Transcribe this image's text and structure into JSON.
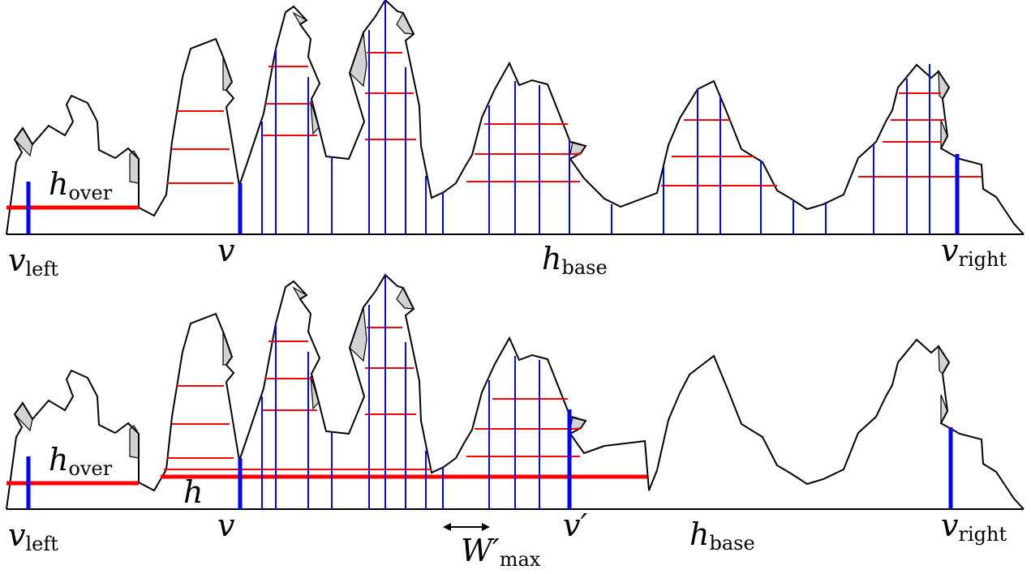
{
  "colors": {
    "water_level": "#ff0000",
    "vertical_segment": "#0000ff",
    "terrain": "#000000",
    "overhang_shade": "#d3d3d3"
  },
  "panels": [
    {
      "labels": {
        "v_left": {
          "main": "v",
          "sub": "left"
        },
        "v": {
          "main": "v",
          "sub": ""
        },
        "h_base": {
          "main": "h",
          "sub": "base"
        },
        "v_right": {
          "main": "v",
          "sub": "right"
        },
        "h_over": {
          "main": "h",
          "sub": "over"
        }
      }
    },
    {
      "labels": {
        "v_left": {
          "main": "v",
          "sub": "left"
        },
        "v": {
          "main": "v",
          "sub": ""
        },
        "v_prime": {
          "main": "v′",
          "sub": ""
        },
        "h_base": {
          "main": "h",
          "sub": "base"
        },
        "v_right": {
          "main": "v",
          "sub": "right"
        },
        "h_over": {
          "main": "h",
          "sub": "over"
        },
        "h": {
          "main": "h",
          "sub": ""
        },
        "w_max": {
          "main": "W′",
          "sub": "max"
        }
      }
    }
  ]
}
